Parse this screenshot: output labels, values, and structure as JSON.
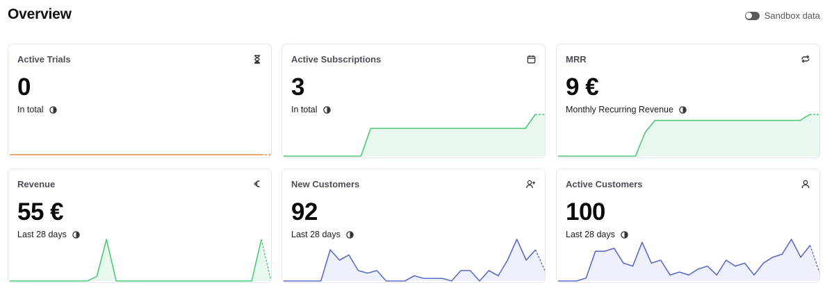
{
  "page": {
    "title": "Overview",
    "sandbox_label": "Sandbox data",
    "sandbox_enabled": false
  },
  "colors": {
    "orange": "#e8853d",
    "green": "#4cc777",
    "green_fill": "#e9f8ef",
    "blue": "#5b6bc5",
    "blue_fill": "#eef0fb"
  },
  "cards": [
    {
      "id": "active-trials",
      "title": "Active Trials",
      "icon": "hourglass-icon",
      "value": "0",
      "subtitle": "In total",
      "chart_color": "orange",
      "series": [
        0,
        0,
        0,
        0,
        0,
        0,
        0,
        0,
        0,
        0,
        0,
        0,
        0,
        0,
        0,
        0,
        0,
        0,
        0,
        0,
        0,
        0,
        0,
        0,
        0,
        0,
        0,
        0
      ],
      "dashed_tail": true
    },
    {
      "id": "active-subscriptions",
      "title": "Active Subscriptions",
      "icon": "calendar-icon",
      "value": "3",
      "subtitle": "In total",
      "chart_color": "green",
      "series": [
        0,
        0,
        0,
        0,
        0,
        0,
        0,
        0,
        0,
        2,
        2,
        2,
        2,
        2,
        2,
        2,
        2,
        2,
        2,
        2,
        2,
        2,
        2,
        2,
        2,
        2,
        3,
        3
      ],
      "dashed_tail": true
    },
    {
      "id": "mrr",
      "title": "MRR",
      "icon": "repeat-icon",
      "value": "9 €",
      "subtitle": "Monthly Recurring Revenue",
      "chart_color": "green",
      "series": [
        0,
        0,
        0,
        0,
        0,
        0,
        0,
        0,
        0,
        4,
        6,
        6,
        6,
        6,
        6,
        6,
        6,
        6,
        6,
        6,
        6,
        6,
        6,
        6,
        6,
        6,
        7,
        7
      ],
      "dashed_tail": true
    },
    {
      "id": "revenue",
      "title": "Revenue",
      "icon": "euro-icon",
      "value": "55 €",
      "subtitle": "Last 28 days",
      "chart_color": "green",
      "series": [
        0,
        0,
        0,
        0,
        0,
        0,
        0,
        0,
        0,
        1,
        9,
        0,
        0,
        0,
        0,
        0,
        0,
        0,
        0,
        0,
        0,
        0,
        0,
        0,
        0,
        0,
        9,
        0
      ],
      "dashed_tail": true
    },
    {
      "id": "new-customers",
      "title": "New Customers",
      "icon": "user-plus-icon",
      "value": "92",
      "subtitle": "Last 28 days",
      "chart_color": "blue",
      "series": [
        0,
        0,
        0,
        0,
        0,
        6,
        4,
        5,
        2,
        1.5,
        2,
        0,
        0,
        0,
        1,
        0.5,
        0.5,
        0.5,
        0,
        2,
        2,
        0,
        2,
        1,
        4,
        8,
        4,
        6,
        2
      ],
      "dashed_tail": true
    },
    {
      "id": "active-customers",
      "title": "Active Customers",
      "icon": "user-icon",
      "value": "100",
      "subtitle": "Last 28 days",
      "chart_color": "blue",
      "series": [
        0,
        0,
        0,
        0.5,
        5,
        5,
        5.5,
        3,
        2.5,
        6.5,
        3,
        3.5,
        1,
        1.5,
        1,
        2,
        2.5,
        1,
        3.5,
        2.5,
        3,
        1,
        3,
        4,
        4.5,
        7,
        4,
        6,
        1.5
      ],
      "dashed_tail": true
    }
  ]
}
